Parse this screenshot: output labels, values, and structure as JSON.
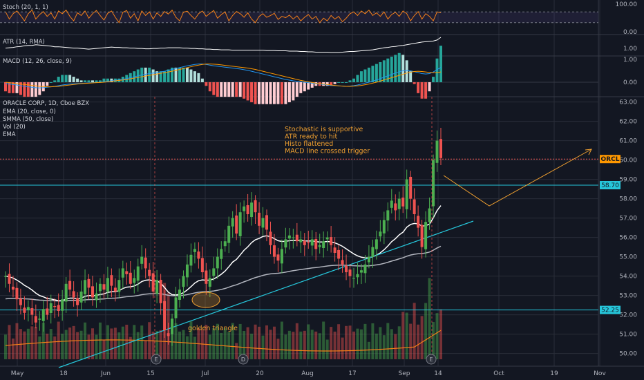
{
  "chart_data": {
    "type": "candlestick",
    "symbol_title": "ORACLE CORP, 1D, Cboe BZX",
    "overlays": [
      "EMA (20, close, 0)",
      "SMMA (50, close)",
      "Vol (20)",
      "EMA"
    ],
    "x_ticks": [
      "May",
      "18",
      "Jun",
      "15",
      "Jul",
      "20",
      "Aug",
      "17",
      "Sep",
      "14",
      "Oct",
      "19",
      "Nov"
    ],
    "price_axis": [
      "63.00",
      "62.00",
      "61.00",
      "60.00",
      "59.00",
      "58.00",
      "57.00",
      "56.00",
      "55.00",
      "54.00",
      "53.00",
      "52.00",
      "51.00",
      "50.00"
    ],
    "price_range": [
      49.7,
      63.2
    ],
    "last_price_label": "ORCL",
    "levels": [
      {
        "price": 58.7,
        "label": "58.70",
        "color": "#26c6da"
      },
      {
        "price": 52.25,
        "label": "52.25",
        "color": "#26c6da"
      }
    ],
    "current_price": 60.05,
    "annotations": {
      "notes": [
        "Stochastic is supportive",
        "ATR ready to hit",
        "Histo flattened",
        "MACD line crossed trigger"
      ],
      "golden": "golden triangle",
      "earnings": [
        "E",
        "D",
        "E"
      ]
    },
    "closes": [
      54.0,
      53.6,
      53.3,
      52.8,
      52.5,
      52.1,
      52.4,
      52.0,
      51.6,
      51.8,
      52.3,
      52.0,
      52.6,
      52.4,
      52.2,
      52.8,
      53.6,
      53.3,
      52.9,
      52.5,
      53.2,
      53.8,
      53.4,
      52.9,
      53.1,
      53.6,
      53.3,
      53.9,
      53.5,
      53.2,
      53.8,
      54.4,
      54.1,
      53.6,
      53.9,
      54.5,
      55.0,
      54.4,
      54.0,
      53.2,
      53.8,
      52.6,
      51.2,
      50.9,
      51.8,
      52.9,
      53.3,
      54.0,
      54.6,
      55.1,
      55.4,
      54.9,
      54.2,
      53.6,
      53.9,
      54.4,
      55.0,
      55.4,
      55.8,
      56.6,
      57.0,
      56.2,
      57.3,
      57.6,
      57.2,
      57.8,
      57.3,
      56.6,
      57.0,
      56.4,
      55.6,
      55.0,
      54.8,
      55.4,
      55.9,
      56.1,
      56.0,
      55.8,
      55.9,
      55.6,
      55.7,
      55.9,
      55.4,
      55.6,
      55.8,
      56.0,
      55.6,
      55.2,
      54.9,
      54.6,
      54.2,
      54.0,
      53.9,
      54.1,
      54.3,
      54.6,
      55.0,
      55.5,
      55.9,
      56.3,
      56.9,
      57.4,
      57.9,
      57.4,
      58.0,
      57.6,
      59.0,
      58.0,
      57.2,
      56.5,
      55.5,
      56.8,
      57.5,
      60.0,
      61.0,
      60.1
    ],
    "stoch": [
      80,
      40,
      70,
      85,
      60,
      30,
      70,
      90,
      40,
      65,
      82,
      55,
      75,
      40,
      85,
      70,
      90,
      55,
      30,
      75,
      60,
      85,
      45,
      70,
      88,
      60,
      35,
      72,
      85,
      50,
      20,
      78,
      88,
      45,
      70,
      30,
      85,
      60,
      80,
      40,
      75,
      55,
      82,
      68,
      90,
      50,
      30,
      78,
      84,
      60,
      40,
      70,
      85,
      55,
      72,
      88,
      45,
      65,
      80,
      30,
      60,
      82,
      70,
      50,
      75,
      40,
      20,
      55,
      70,
      50,
      60,
      72,
      38,
      55,
      48,
      62,
      40,
      58,
      30,
      50,
      65,
      40,
      55,
      20,
      45,
      30,
      60,
      40,
      55,
      25,
      45,
      70,
      80,
      60,
      85,
      70,
      90,
      60,
      75,
      55,
      80,
      40,
      65,
      78,
      55,
      85,
      70,
      30,
      60,
      82,
      40,
      70,
      55,
      30,
      80,
      75
    ],
    "atr": [
      0.98,
      0.99,
      1.0,
      1.02,
      1.03,
      1.05,
      1.06,
      1.06,
      1.08,
      1.07,
      1.06,
      1.05,
      1.04,
      1.02,
      1.02,
      1.01,
      1.0,
      0.99,
      0.98,
      0.98,
      0.97,
      0.96,
      0.95,
      0.96,
      0.97,
      0.98,
      0.99,
      1.0,
      1.01,
      1.0,
      1.0,
      0.99,
      0.99,
      0.98,
      0.98,
      0.97,
      0.97,
      0.96,
      0.96,
      0.97,
      0.97,
      0.98,
      0.98,
      0.99,
      0.99,
      0.99,
      0.99,
      0.98,
      0.98,
      0.97,
      0.97,
      0.96,
      0.96,
      0.95,
      0.95,
      0.94,
      0.94,
      0.93,
      0.93,
      0.93,
      0.92,
      0.92,
      0.92,
      0.92,
      0.92,
      0.92,
      0.92,
      0.92,
      0.92,
      0.91,
      0.91,
      0.91,
      0.9,
      0.9,
      0.9,
      0.89,
      0.89,
      0.89,
      0.88,
      0.88,
      0.87,
      0.87,
      0.86,
      0.86,
      0.86,
      0.86,
      0.85,
      0.85,
      0.85,
      0.86,
      0.87,
      0.88,
      0.88,
      0.89,
      0.9,
      0.91,
      0.92,
      0.93,
      0.95,
      0.97,
      0.99,
      1.0,
      1.02,
      1.03,
      1.05,
      1.06,
      1.08,
      1.1,
      1.12,
      1.14,
      1.16,
      1.17,
      1.18,
      1.19,
      1.22,
      1.3
    ],
    "macd": [
      -0.05,
      -0.08,
      -0.1,
      -0.12,
      -0.15,
      -0.18,
      -0.2,
      -0.22,
      -0.24,
      -0.25,
      -0.24,
      -0.22,
      -0.2,
      -0.18,
      -0.15,
      -0.12,
      -0.1,
      -0.08,
      -0.07,
      -0.06,
      -0.05,
      -0.04,
      -0.03,
      -0.02,
      -0.01,
      0.0,
      0.02,
      0.04,
      0.06,
      0.08,
      0.1,
      0.13,
      0.16,
      0.2,
      0.24,
      0.28,
      0.32,
      0.35,
      0.38,
      0.4,
      0.42,
      0.45,
      0.48,
      0.52,
      0.56,
      0.6,
      0.64,
      0.68,
      0.72,
      0.75,
      0.78,
      0.8,
      0.8,
      0.78,
      0.75,
      0.72,
      0.7,
      0.68,
      0.66,
      0.64,
      0.62,
      0.6,
      0.58,
      0.55,
      0.52,
      0.48,
      0.44,
      0.4,
      0.36,
      0.32,
      0.28,
      0.24,
      0.2,
      0.16,
      0.12,
      0.09,
      0.06,
      0.04,
      0.02,
      0.0,
      -0.02,
      -0.04,
      -0.06,
      -0.08,
      -0.1,
      -0.12,
      -0.14,
      -0.15,
      -0.16,
      -0.17,
      -0.18,
      -0.17,
      -0.15,
      -0.12,
      -0.08,
      -0.04,
      0.0,
      0.05,
      0.1,
      0.16,
      0.22,
      0.28,
      0.34,
      0.4,
      0.46,
      0.5,
      0.52,
      0.5,
      0.46,
      0.42,
      0.38,
      0.36,
      0.38,
      0.45,
      0.55,
      0.65
    ],
    "signal": [
      0.0,
      -0.02,
      -0.04,
      -0.06,
      -0.08,
      -0.1,
      -0.12,
      -0.14,
      -0.16,
      -0.18,
      -0.19,
      -0.2,
      -0.2,
      -0.19,
      -0.18,
      -0.16,
      -0.14,
      -0.12,
      -0.1,
      -0.08,
      -0.06,
      -0.05,
      -0.04,
      -0.03,
      -0.02,
      -0.01,
      0.0,
      0.02,
      0.04,
      0.06,
      0.08,
      0.1,
      0.12,
      0.15,
      0.18,
      0.21,
      0.24,
      0.27,
      0.3,
      0.33,
      0.36,
      0.39,
      0.42,
      0.45,
      0.48,
      0.52,
      0.56,
      0.6,
      0.64,
      0.68,
      0.72,
      0.75,
      0.78,
      0.8,
      0.8,
      0.79,
      0.78,
      0.76,
      0.74,
      0.72,
      0.7,
      0.68,
      0.66,
      0.64,
      0.62,
      0.59,
      0.56,
      0.52,
      0.48,
      0.44,
      0.4,
      0.36,
      0.32,
      0.28,
      0.24,
      0.2,
      0.16,
      0.12,
      0.08,
      0.05,
      0.02,
      -0.01,
      -0.04,
      -0.06,
      -0.08,
      -0.1,
      -0.12,
      -0.14,
      -0.16,
      -0.17,
      -0.18,
      -0.18,
      -0.17,
      -0.16,
      -0.14,
      -0.11,
      -0.08,
      -0.04,
      0.0,
      0.05,
      0.1,
      0.15,
      0.2,
      0.25,
      0.3,
      0.35,
      0.4,
      0.44,
      0.47,
      0.48,
      0.47,
      0.45,
      0.43,
      0.42,
      0.42,
      0.45
    ],
    "stoch_axis": [
      "100.00",
      "0.00"
    ],
    "atr_axis": [
      "1.00"
    ],
    "macd_axis": [
      "1.00",
      "0.00"
    ],
    "indicator_labels": {
      "stoch": "Stoch (20, 1, 1)",
      "atr": "ATR (14, RMA)",
      "macd": "MACD (12, 26, close, 9)"
    },
    "colors": {
      "up": "#4caf50",
      "down": "#ef5350",
      "ema": "#ffffff",
      "smma": "#b2b5be",
      "trend": "#26c6da",
      "note": "#f0a030",
      "stoch": "#f57f17",
      "macd": "#2196f3",
      "signal": "#ff9800",
      "grid": "#2a2e39"
    }
  }
}
